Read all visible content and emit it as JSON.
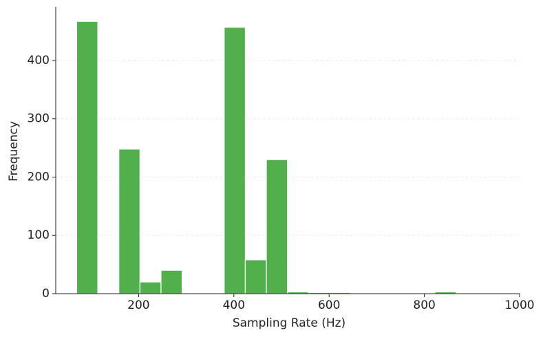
{
  "chart_data": {
    "type": "histogram",
    "x_label": "Sampling Rate (Hz)",
    "y_label": "Frequency",
    "bins": [
      70,
      114.25,
      158.5,
      202.75,
      247,
      291.25,
      335.5,
      379.75,
      424,
      468.25,
      512.5,
      556.75,
      601,
      645.25,
      689.5,
      733.75,
      778,
      822.25,
      866.5,
      910.75,
      955
    ],
    "values": [
      467,
      0,
      248,
      20,
      40,
      1,
      0,
      457,
      58,
      230,
      3,
      2,
      2,
      1,
      0,
      0,
      0,
      3,
      1,
      0
    ],
    "color": "#52b04c",
    "xlim": [
      26,
      1000
    ],
    "ylim": [
      0,
      492
    ],
    "xticks": [
      200,
      400,
      600,
      800,
      1000
    ],
    "yticks": [
      0,
      100,
      200,
      300,
      400
    ],
    "grid": true
  }
}
